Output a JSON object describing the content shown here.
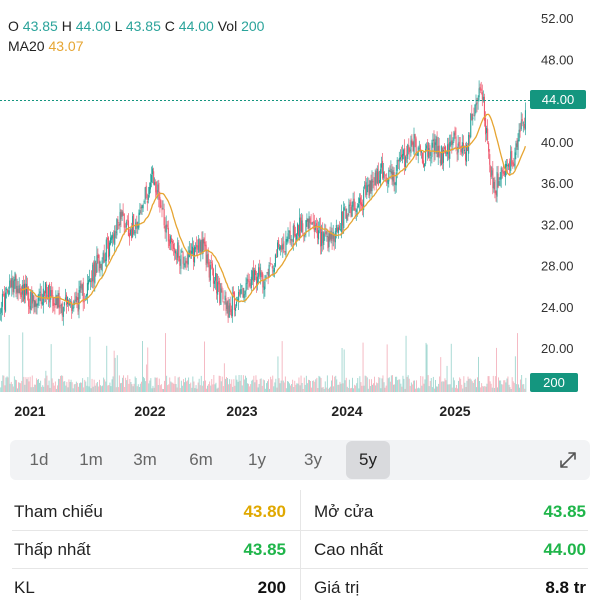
{
  "header": {
    "o_label": "O",
    "o_value": "43.85",
    "h_label": "H",
    "h_value": "44.00",
    "l_label": "L",
    "l_value": "43.85",
    "c_label": "C",
    "c_value": "44.00",
    "vol_label": "Vol",
    "vol_value": "200",
    "ma_label": "MA20",
    "ma_value": "43.07"
  },
  "current_price_tag": "44.00",
  "current_volume_tag": "200",
  "colors": {
    "up": "#2aa39a",
    "down": "#ef5a6f",
    "ma": "#e6a532",
    "tag": "#14967f",
    "ref": "#e0a800",
    "green": "#1fb54a"
  },
  "chart_data": {
    "type": "candlestick",
    "y_ticks": [
      "52.00",
      "48.00",
      "44.00",
      "40.00",
      "36.00",
      "32.00",
      "28.00",
      "24.00",
      "20.00"
    ],
    "ylim": [
      19,
      53
    ],
    "x_ticks": [
      "2021",
      "2022",
      "2023",
      "2024",
      "2025"
    ],
    "current_price": 44.0,
    "ma_period": 20,
    "close_series": [
      {
        "t": 2020.75,
        "v": 24.5
      },
      {
        "t": 2020.85,
        "v": 26.5
      },
      {
        "t": 2020.95,
        "v": 25.5
      },
      {
        "t": 2021.05,
        "v": 23.8
      },
      {
        "t": 2021.15,
        "v": 25.8
      },
      {
        "t": 2021.3,
        "v": 24.2
      },
      {
        "t": 2021.45,
        "v": 24.6
      },
      {
        "t": 2021.55,
        "v": 26.0
      },
      {
        "t": 2021.65,
        "v": 28.5
      },
      {
        "t": 2021.75,
        "v": 30.0
      },
      {
        "t": 2021.85,
        "v": 33.0
      },
      {
        "t": 2021.95,
        "v": 31.5
      },
      {
        "t": 2022.05,
        "v": 33.5
      },
      {
        "t": 2022.15,
        "v": 36.5
      },
      {
        "t": 2022.22,
        "v": 34.5
      },
      {
        "t": 2022.3,
        "v": 31.0
      },
      {
        "t": 2022.4,
        "v": 29.0
      },
      {
        "t": 2022.5,
        "v": 28.5
      },
      {
        "t": 2022.6,
        "v": 30.5
      },
      {
        "t": 2022.7,
        "v": 27.5
      },
      {
        "t": 2022.8,
        "v": 25.0
      },
      {
        "t": 2022.88,
        "v": 23.8
      },
      {
        "t": 2022.98,
        "v": 25.5
      },
      {
        "t": 2023.1,
        "v": 26.5
      },
      {
        "t": 2023.2,
        "v": 27.0
      },
      {
        "t": 2023.35,
        "v": 29.5
      },
      {
        "t": 2023.5,
        "v": 31.5
      },
      {
        "t": 2023.6,
        "v": 32.0
      },
      {
        "t": 2023.7,
        "v": 31.0
      },
      {
        "t": 2023.8,
        "v": 29.8
      },
      {
        "t": 2023.9,
        "v": 31.5
      },
      {
        "t": 2024.0,
        "v": 33.5
      },
      {
        "t": 2024.1,
        "v": 34.0
      },
      {
        "t": 2024.2,
        "v": 35.5
      },
      {
        "t": 2024.3,
        "v": 37.0
      },
      {
        "t": 2024.4,
        "v": 36.5
      },
      {
        "t": 2024.5,
        "v": 38.0
      },
      {
        "t": 2024.6,
        "v": 40.0
      },
      {
        "t": 2024.7,
        "v": 38.5
      },
      {
        "t": 2024.8,
        "v": 39.5
      },
      {
        "t": 2024.9,
        "v": 38.5
      },
      {
        "t": 2025.0,
        "v": 40.0
      },
      {
        "t": 2025.1,
        "v": 39.0
      },
      {
        "t": 2025.2,
        "v": 44.5
      },
      {
        "t": 2025.25,
        "v": 45.5
      },
      {
        "t": 2025.3,
        "v": 40.0
      },
      {
        "t": 2025.36,
        "v": 35.0
      },
      {
        "t": 2025.45,
        "v": 37.5
      },
      {
        "t": 2025.55,
        "v": 38.5
      },
      {
        "t": 2025.65,
        "v": 42.0
      },
      {
        "t": 2025.7,
        "v": 46.5
      },
      {
        "t": 2025.75,
        "v": 43.5
      },
      {
        "t": 2025.8,
        "v": 44.0
      }
    ]
  },
  "timeframes": [
    "1d",
    "1m",
    "3m",
    "6m",
    "1y",
    "3y",
    "5y"
  ],
  "active_timeframe": "5y",
  "stats": {
    "ref_label": "Tham chiếu",
    "ref_value": "43.80",
    "open_label": "Mở cửa",
    "open_value": "43.85",
    "low_label": "Thấp nhất",
    "low_value": "43.85",
    "high_label": "Cao nhất",
    "high_value": "44.00",
    "kl_label": "KL",
    "kl_value": "200",
    "gt_label": "Giá trị",
    "gt_value": "8.8 tr"
  }
}
